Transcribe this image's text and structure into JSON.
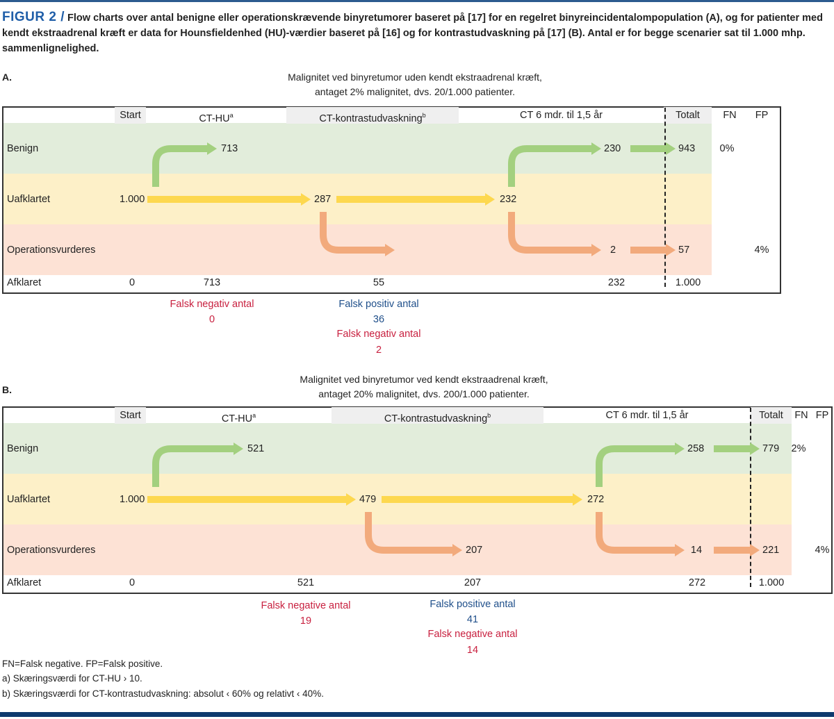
{
  "figure": {
    "label": "FIGUR 2 /",
    "caption": "Flow charts over antal benigne eller operationskrævende binyretumorer baseret på [17] for en regelret binyreincidentalompopulation (A), og for patienter med kendt ekstraadrenal kræft er data for Hounsfieldenhed (HU)-værdier baseret på [16] og for kontrastudvaskning på [17] (B). Antal er for begge scenarier sat til 1.000 mhp. sammenlignelighed."
  },
  "headers": {
    "start": "Start",
    "cthu": "CT-HU",
    "cthu_sup": "a",
    "kontrast": "CT-kontrastudvaskning",
    "kontrast_sup": "b",
    "ct6": "CT 6 mdr. til 1,5 år",
    "totalt": "Totalt",
    "fn": "FN",
    "fp": "FP"
  },
  "rows": {
    "benign": "Benign",
    "uafklaret": "Uafklartet",
    "operations": "Operationsvurderes",
    "afklaret": "Afklaret"
  },
  "panelA": {
    "letter": "A.",
    "subtitle1": "Malignitet ved binyretumor uden kendt ekstraadrenal kræft,",
    "subtitle2": "antaget 2% malignitet, dvs. 20/1.000 patienter.",
    "values": {
      "start": "1.000",
      "benign_cthu": "713",
      "unclear_kontrast": "287",
      "unclear_ct6": "232",
      "benign_ct6": "230",
      "ops_ct6": "2",
      "total_benign": "943",
      "total_ops": "57",
      "fn": "0%",
      "fp": "4%"
    },
    "afklaret": {
      "start": "0",
      "cthu": "713",
      "kontrast": "55",
      "ct6": "232",
      "total": "1.000"
    },
    "annotations": {
      "fn1_label": "Falsk negativ antal",
      "fn1_value": "0",
      "fp2_label": "Falsk positiv antal",
      "fp2_value": "36",
      "fn2_label": "Falsk negativ antal",
      "fn2_value": "2"
    }
  },
  "panelB": {
    "letter": "B.",
    "subtitle1": "Malignitet ved binyretumor ved kendt ekstraadrenal kræft,",
    "subtitle2": "antaget 20% malignitet, dvs. 200/1.000 patienter.",
    "values": {
      "start": "1.000",
      "benign_cthu": "521",
      "unclear_kontrast": "479",
      "ops_kontrast": "207",
      "unclear_ct6": "272",
      "benign_ct6": "258",
      "ops_ct6": "14",
      "total_benign": "779",
      "total_ops": "221",
      "fn": "2%",
      "fp": "4%"
    },
    "afklaret": {
      "start": "0",
      "cthu": "521",
      "kontrast": "207",
      "ct6": "272",
      "total": "1.000"
    },
    "annotations": {
      "fn1_label": "Falsk negative antal",
      "fn1_value": "19",
      "fp2_label": "Falsk positive antal",
      "fp2_value": "41",
      "fn2_label": "Falsk negative antal",
      "fn2_value": "14"
    }
  },
  "footnotes": {
    "abbrev": "FN=Falsk negative. FP=Falsk positive.",
    "a": "a) Skæringsværdi for CT-HU › 10.",
    "b": "b) Skæringsværdi for CT-kontrastudvaskning: absolut ‹ 60% og relativt ‹ 40%."
  },
  "colors": {
    "benign_band": "#e2eddb",
    "unclear_band": "#fdf0c8",
    "ops_band": "#fde2d5",
    "header_gray": "#efefef",
    "green_arrow": "#a3d07f",
    "yellow_arrow": "#fdd84f",
    "orange_arrow": "#f2aa7c",
    "accent": "#1f5ea8"
  }
}
